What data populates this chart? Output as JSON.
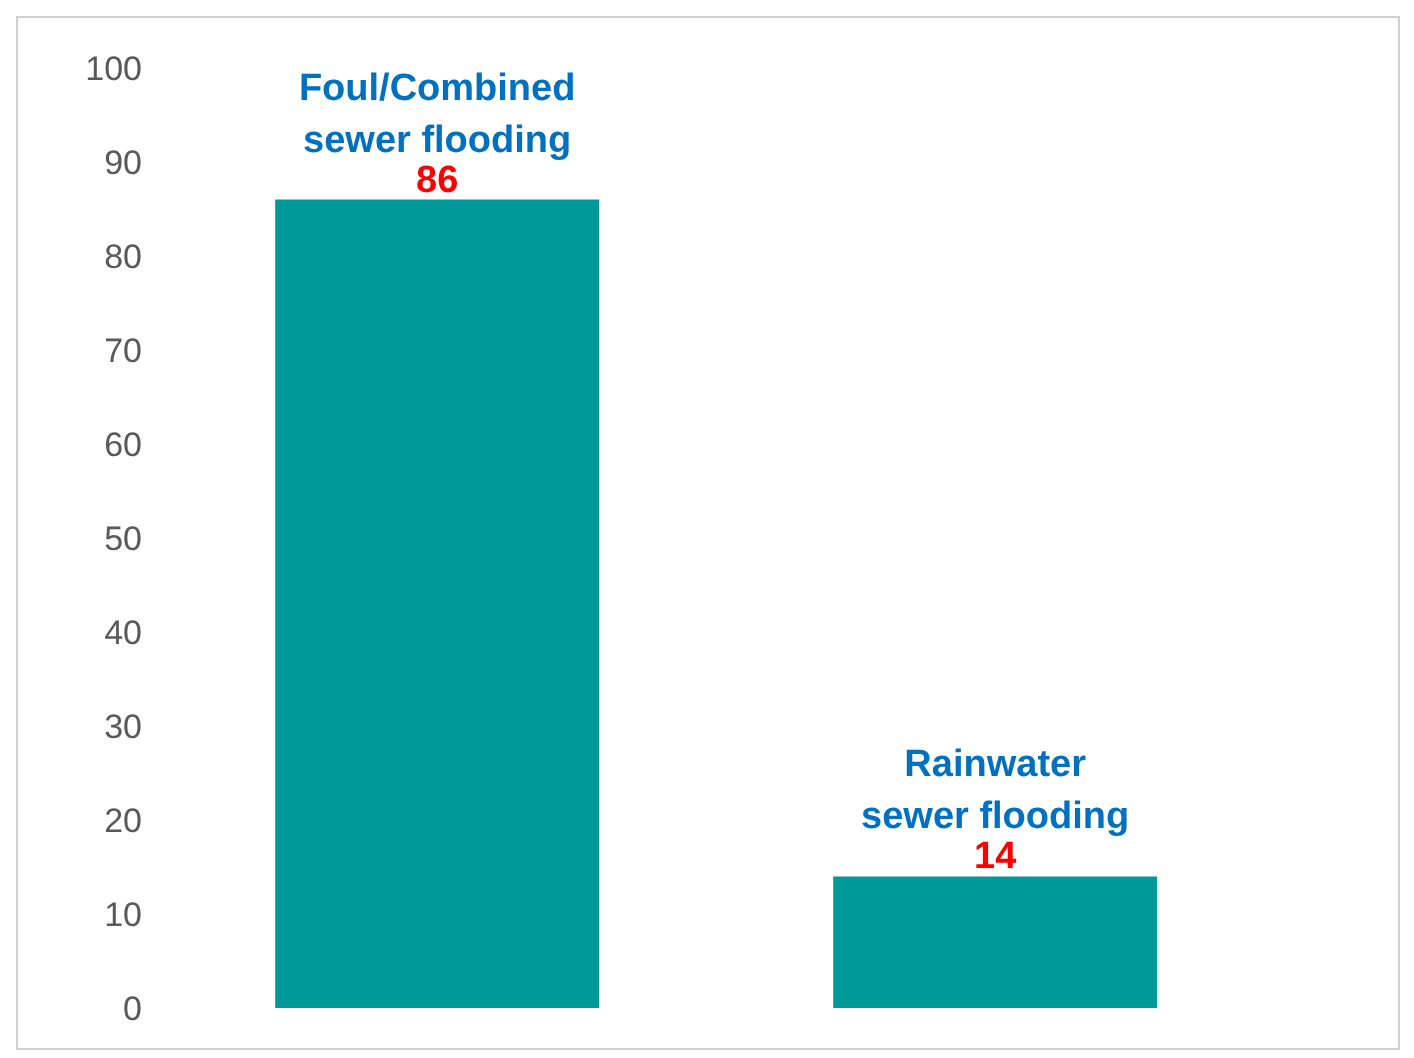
{
  "chart_data": {
    "type": "bar",
    "categories": [
      "Foul/Combined sewer flooding",
      "Rainwater sewer flooding"
    ],
    "values": [
      86,
      14
    ],
    "color": "#009999",
    "ylim": [
      0,
      100
    ],
    "yticks": [
      0,
      10,
      20,
      30,
      40,
      50,
      60,
      70,
      80,
      90,
      100
    ],
    "grid": false,
    "data_labels": true
  }
}
